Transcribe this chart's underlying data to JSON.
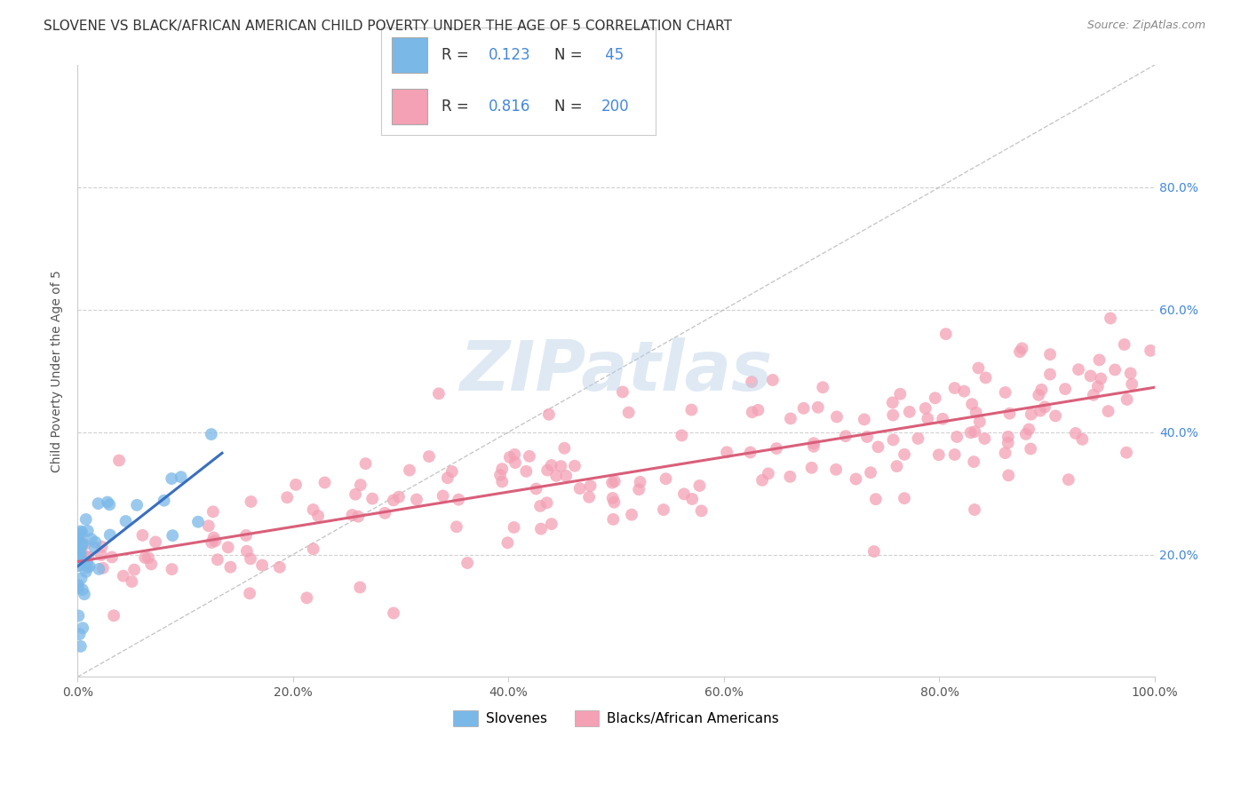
{
  "title": "SLOVENE VS BLACK/AFRICAN AMERICAN CHILD POVERTY UNDER THE AGE OF 5 CORRELATION CHART",
  "source_text": "Source: ZipAtlas.com",
  "ylabel": "Child Poverty Under the Age of 5",
  "xlim": [
    0,
    1
  ],
  "ylim": [
    0,
    1
  ],
  "xticks": [
    0.0,
    0.2,
    0.4,
    0.6,
    0.8,
    1.0
  ],
  "yticks": [
    0.2,
    0.4,
    0.6,
    0.8
  ],
  "xticklabels": [
    "0.0%",
    "20.0%",
    "40.0%",
    "60.0%",
    "80.0%",
    "100.0%"
  ],
  "right_yticklabels": [
    "20.0%",
    "40.0%",
    "60.0%",
    "80.0%"
  ],
  "blue_color": "#7ab8e8",
  "pink_color": "#f4a0b5",
  "blue_line_color": "#3a6fbf",
  "pink_line_color": "#d95f7a",
  "dashed_line_color": "#b0b0b0",
  "legend_label1": "Slovenes",
  "legend_label2": "Blacks/African Americans",
  "title_fontsize": 11,
  "axis_label_fontsize": 10,
  "tick_fontsize": 10,
  "watermark_color": "#b8cfe8",
  "watermark_alpha": 0.45,
  "background_color": "#ffffff",
  "blue_n": 45,
  "pink_n": 200,
  "blue_R": 0.123,
  "pink_R": 0.816,
  "legend_text_color": "#333333",
  "legend_value_color": "#4488dd",
  "right_tick_color": "#4488dd",
  "grid_color": "#cccccc"
}
